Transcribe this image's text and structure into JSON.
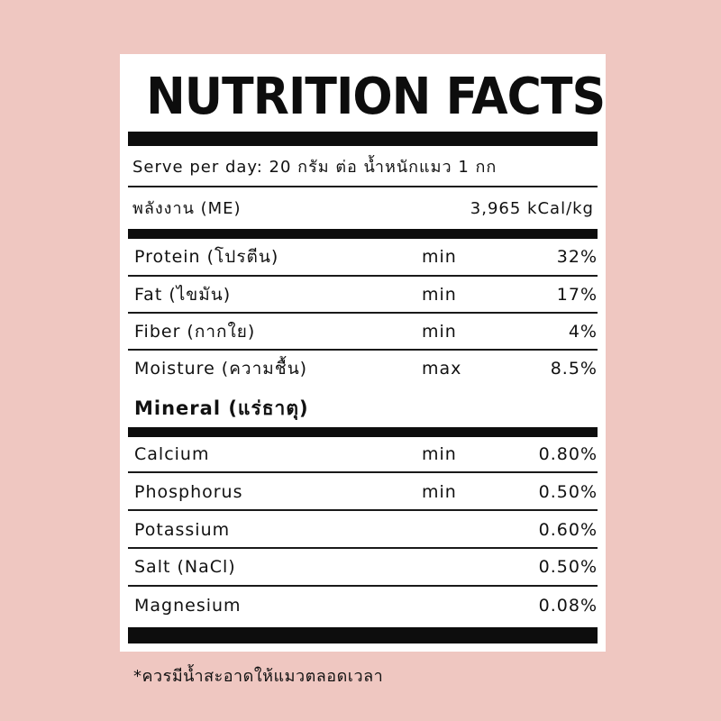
{
  "panel": {
    "title": "NUTRITION FACTS",
    "serve_per_day": "Serve per day: 20 กรัม ต่อ น้ำหนักแมว 1 กก",
    "energy": {
      "label": "พลังงาน (ME)",
      "value": "3,965 kCal/kg"
    },
    "nutrients": [
      {
        "name": "Protein (โปรตีน)",
        "qualifier": "min",
        "value": "32%"
      },
      {
        "name": "Fat (ไขมัน)",
        "qualifier": "min",
        "value": "17%"
      },
      {
        "name": "Fiber (กากใย)",
        "qualifier": "min",
        "value": "4%"
      },
      {
        "name": "Moisture (ความชื้น)",
        "qualifier": "max",
        "value": "8.5%"
      }
    ],
    "mineral_heading": "Mineral (แร่ธาตุ)",
    "minerals": [
      {
        "name": "Calcium",
        "qualifier": "min",
        "value": "0.80%"
      },
      {
        "name": "Phosphorus",
        "qualifier": "min",
        "value": "0.50%"
      },
      {
        "name": "Potassium",
        "qualifier": "",
        "value": "0.60%"
      },
      {
        "name": "Salt (NaCl)",
        "qualifier": "",
        "value": "0.50%"
      },
      {
        "name": "Magnesium",
        "qualifier": "",
        "value": "0.08%"
      }
    ]
  },
  "footnote": "*ควรมีน้ำสะอาดให้แมวตลอดเวลา",
  "colors": {
    "background": "#efc7c1",
    "card": "#ffffff",
    "ink": "#0d0d0d"
  }
}
